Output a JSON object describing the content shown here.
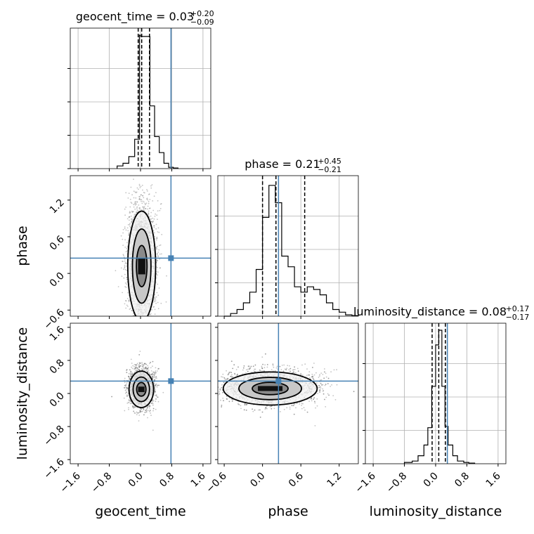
{
  "chart_data": {
    "type": "corner",
    "parameters": [
      "geocent_time",
      "phase",
      "luminosity_distance"
    ],
    "axis_labels": [
      "geocent_time",
      "phase",
      "luminosity_distance"
    ],
    "truth_color": "#4682b4",
    "grid": true,
    "panels": [
      {
        "kind": "hist",
        "param": "geocent_time",
        "title": {
          "label": "geocent_time = 0.03",
          "plus": "+0.20",
          "minus": "−0.09"
        },
        "xlim": [
          -1.8,
          1.8
        ],
        "bin_edges": [
          -0.6,
          -0.45,
          -0.3,
          -0.15,
          -0.03,
          0.0,
          0.12,
          0.24,
          0.36,
          0.48,
          0.6,
          0.72,
          0.84,
          0.96
        ],
        "counts": [
          0.02,
          0.04,
          0.09,
          0.22,
          1.0,
          0.99,
          0.99,
          0.47,
          0.24,
          0.12,
          0.04,
          0.01,
          0.005
        ],
        "quantile_lines": [
          -0.06,
          0.03,
          0.23
        ],
        "truth": 0.78,
        "xticks": [
          "−1.6",
          "−0.8",
          "0.0",
          "0.8",
          "1.6"
        ]
      },
      {
        "kind": "hist",
        "param": "phase",
        "title": {
          "label": "phase = 0.21",
          "plus": "+0.45",
          "minus": "−0.21"
        },
        "xlim": [
          -0.7,
          1.5
        ],
        "bin_edges": [
          -0.6,
          -0.5,
          -0.4,
          -0.3,
          -0.2,
          -0.1,
          0.0,
          0.1,
          0.2,
          0.3,
          0.4,
          0.5,
          0.6,
          0.7,
          0.8,
          0.9,
          1.0,
          1.1,
          1.2,
          1.3,
          1.4,
          1.5
        ],
        "counts": [
          0.0,
          0.02,
          0.05,
          0.1,
          0.18,
          0.35,
          0.74,
          0.98,
          0.85,
          0.45,
          0.37,
          0.22,
          0.18,
          0.22,
          0.2,
          0.16,
          0.1,
          0.05,
          0.03,
          0.01,
          0.005
        ],
        "quantile_lines": [
          0.0,
          0.21,
          0.66
        ],
        "truth": 0.25,
        "xticks": [
          "−0.6",
          "0.0",
          "0.6",
          "1.2"
        ]
      },
      {
        "kind": "hist",
        "param": "luminosity_distance",
        "title": {
          "label": "luminosity_distance = 0.08",
          "plus": "+0.17",
          "minus": "−0.17"
        },
        "xlim": [
          -1.8,
          1.8
        ],
        "bin_edges": [
          -0.8,
          -0.6,
          -0.45,
          -0.3,
          -0.2,
          -0.1,
          0.0,
          0.08,
          0.16,
          0.24,
          0.32,
          0.44,
          0.56,
          0.72,
          0.85,
          1.0
        ],
        "counts": [
          0.01,
          0.02,
          0.06,
          0.14,
          0.27,
          0.58,
          0.89,
          1.0,
          0.58,
          0.28,
          0.14,
          0.06,
          0.02,
          0.01,
          0.005
        ],
        "quantile_lines": [
          -0.09,
          0.08,
          0.25
        ],
        "truth": 0.3,
        "xticks": [
          "−1.6",
          "−0.8",
          "0.0",
          "0.8",
          "1.6"
        ]
      }
    ],
    "pairs": [
      {
        "x": "geocent_time",
        "y": "phase",
        "xlim": [
          -1.8,
          1.8
        ],
        "ylim": [
          -0.7,
          1.6
        ],
        "truth": [
          0.78,
          0.25
        ],
        "center": [
          0.03,
          0.12
        ],
        "spread": [
          0.17,
          0.45
        ],
        "yticks": [
          "−0.6",
          "0.0",
          "0.6",
          "1.2"
        ]
      },
      {
        "x": "geocent_time",
        "y": "luminosity_distance",
        "xlim": [
          -1.8,
          1.8
        ],
        "ylim": [
          -1.7,
          1.7
        ],
        "truth": [
          0.78,
          0.3
        ],
        "center": [
          0.02,
          0.1
        ],
        "spread": [
          0.15,
          0.22
        ],
        "yticks": [
          "−1.6",
          "−0.8",
          "0.0",
          "0.8",
          "1.6"
        ]
      },
      {
        "x": "phase",
        "y": "luminosity_distance",
        "xlim": [
          -0.7,
          1.5
        ],
        "ylim": [
          -1.7,
          1.7
        ],
        "truth": [
          0.25,
          0.3
        ],
        "center": [
          0.12,
          0.12
        ],
        "spread": [
          0.35,
          0.2
        ]
      }
    ]
  }
}
